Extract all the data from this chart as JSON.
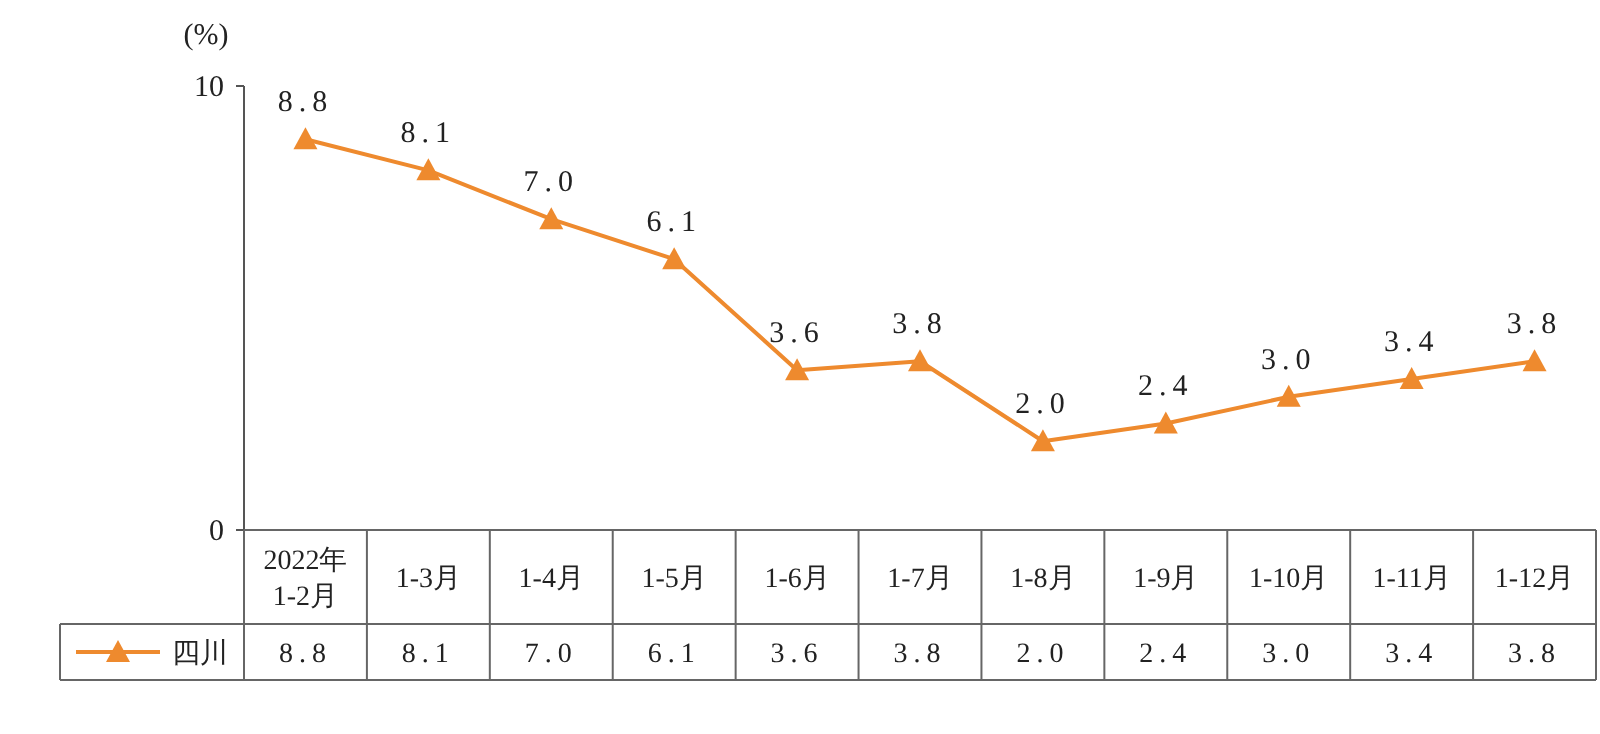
{
  "chart_data": {
    "type": "line",
    "ylabel": "(%)",
    "categories": [
      "2022年\n1-2月",
      "1-3月",
      "1-4月",
      "1-5月",
      "1-6月",
      "1-7月",
      "1-8月",
      "1-9月",
      "1-10月",
      "1-11月",
      "1-12月"
    ],
    "series": [
      {
        "name": "四川",
        "color": "#ee8a2e",
        "values": [
          8.8,
          8.1,
          7.0,
          6.1,
          3.6,
          3.8,
          2.0,
          2.4,
          3.0,
          3.4,
          3.8
        ],
        "value_labels": [
          "8.8",
          "8.1",
          "7.0",
          "6.1",
          "3.6",
          "3.8",
          "2.0",
          "2.4",
          "3.0",
          "3.4",
          "3.8"
        ]
      }
    ],
    "ylim": [
      0,
      10
    ],
    "yticks": [
      0,
      10
    ],
    "marker": "triangle",
    "line_style": "solid",
    "legend": "bottom left",
    "grid": false
  }
}
